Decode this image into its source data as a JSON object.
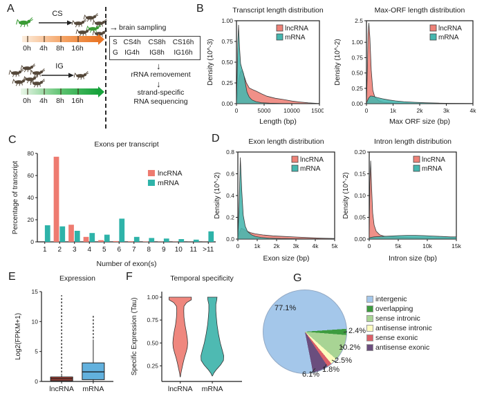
{
  "panel_labels": {
    "a": "A",
    "b": "B",
    "c": "C",
    "d": "D",
    "e": "E",
    "f": "F",
    "g": "G"
  },
  "colors": {
    "lncRNA_fill": "#ee8177",
    "mRNA_fill": "#45b6ae",
    "bug_dark": "#55483a",
    "bug_green": "#3a9b35",
    "orange_arrow": "#e97626",
    "green_arrow": "#17a33c"
  },
  "icons": {
    "right_arrow": "→",
    "down_arrow": "↓"
  },
  "panelA": {
    "cs": "CS",
    "ig": "IG",
    "timeline": [
      "0h",
      "4h",
      "8h",
      "16h"
    ],
    "brain_sampling": "brain sampling",
    "sample_box": {
      "row1": [
        "S",
        "CS4h",
        "CS8h",
        "CS16h"
      ],
      "row2": [
        "G",
        "IG4h",
        "IG8h",
        "IG16h"
      ]
    },
    "rrna": "rRNA removement",
    "strand1": "strand-specific",
    "strand2": "RNA sequencing"
  },
  "chart_data": [
    {
      "name": "transcript-length",
      "type": "area",
      "title": "Transcript length distribution",
      "xlabel": "Length (bp)",
      "ylabel": "Density (10^-3)",
      "xmax": 15000,
      "ymax": 1.0,
      "xticks": [
        0,
        5000,
        10000,
        15000
      ],
      "xtick_labels": [
        "0",
        "5000",
        "10000",
        "15000"
      ],
      "yticks": [
        0,
        0.25,
        0.5,
        0.75,
        1.0
      ],
      "ytick_labels": [
        "0.00",
        "0.25",
        "0.50",
        "0.75",
        "1.00"
      ],
      "series": [
        {
          "name": "lncRNA",
          "color": "#ee8177",
          "points": [
            [
              0,
              0
            ],
            [
              150,
              0.1
            ],
            [
              400,
              0.28
            ],
            [
              700,
              0.38
            ],
            [
              1000,
              0.4
            ],
            [
              1400,
              0.33
            ],
            [
              1800,
              0.25
            ],
            [
              2300,
              0.19
            ],
            [
              2900,
              0.17
            ],
            [
              3600,
              0.15
            ],
            [
              4500,
              0.12
            ],
            [
              5500,
              0.09
            ],
            [
              7000,
              0.065
            ],
            [
              8500,
              0.05
            ],
            [
              10000,
              0.032
            ],
            [
              11500,
              0.02
            ],
            [
              13000,
              0.01
            ],
            [
              14500,
              0.004
            ],
            [
              15000,
              0.003
            ]
          ]
        },
        {
          "name": "mRNA",
          "color": "#45b6ae",
          "points": [
            [
              0,
              0
            ],
            [
              120,
              0.35
            ],
            [
              250,
              0.75
            ],
            [
              380,
              0.95
            ],
            [
              550,
              0.68
            ],
            [
              750,
              0.48
            ],
            [
              1000,
              0.42
            ],
            [
              1300,
              0.36
            ],
            [
              1600,
              0.25
            ],
            [
              1900,
              0.14
            ],
            [
              2300,
              0.08
            ],
            [
              2800,
              0.045
            ],
            [
              3500,
              0.025
            ],
            [
              4500,
              0.012
            ],
            [
              6000,
              0.006
            ],
            [
              8000,
              0.003
            ],
            [
              15000,
              0.001
            ]
          ]
        }
      ]
    },
    {
      "name": "max-orf-length",
      "type": "area",
      "title": "Max-ORF length distribution",
      "xlabel": "Max ORF size (bp)",
      "ylabel": "Density (10^-2)",
      "xmax": 4000,
      "ymax": 2.5,
      "ybreak": {
        "lin": 1.0,
        "max": 2.5,
        "frac": 0.74
      },
      "xticks": [
        0,
        1000,
        2000,
        3000,
        4000
      ],
      "xtick_labels": [
        "0",
        "1k",
        "2k",
        "3k",
        "4k"
      ],
      "yticks": [
        0,
        0.25,
        0.5,
        0.75,
        1.0,
        2.5
      ],
      "ytick_labels": [
        "0.00",
        "0.25",
        "0.50",
        "0.75",
        "1.00",
        "2.5"
      ],
      "series": [
        {
          "name": "lncRNA",
          "color": "#ee8177",
          "points": [
            [
              0,
              0.02
            ],
            [
              30,
              0.5
            ],
            [
              60,
              1.6
            ],
            [
              90,
              2.35
            ],
            [
              130,
              1.3
            ],
            [
              180,
              0.55
            ],
            [
              240,
              0.22
            ],
            [
              320,
              0.1
            ],
            [
              450,
              0.05
            ],
            [
              650,
              0.02
            ],
            [
              1000,
              0.01
            ],
            [
              2000,
              0.004
            ],
            [
              4000,
              0.001
            ]
          ]
        },
        {
          "name": "mRNA",
          "color": "#45b6ae",
          "points": [
            [
              0,
              0.01
            ],
            [
              80,
              0.09
            ],
            [
              150,
              0.125
            ],
            [
              250,
              0.12
            ],
            [
              400,
              0.1
            ],
            [
              600,
              0.08
            ],
            [
              850,
              0.06
            ],
            [
              1100,
              0.045
            ],
            [
              1400,
              0.033
            ],
            [
              1800,
              0.022
            ],
            [
              2200,
              0.015
            ],
            [
              2700,
              0.009
            ],
            [
              3200,
              0.006
            ],
            [
              4000,
              0.003
            ]
          ]
        }
      ]
    },
    {
      "name": "exons-per-transcript",
      "type": "bar",
      "title": "Exons per transcript",
      "xlabel": "Number of exon(s)",
      "ylabel": "Percentage of transcript",
      "categories": [
        "1",
        "2",
        "3",
        "4",
        "5",
        "6",
        "7",
        "8",
        "9",
        "10",
        "11",
        ">11"
      ],
      "ymax": 80,
      "yticks": [
        0,
        20,
        40,
        60,
        80
      ],
      "ytick_labels": [
        "0",
        "20",
        "40",
        "60",
        "80"
      ],
      "series": [
        {
          "name": "lncRNA",
          "color": "#ee7b70",
          "values": [
            0,
            77,
            15.5,
            4.5,
            1.5,
            0.7,
            0.5,
            0.3,
            0.2,
            0.2,
            0.1,
            0.1
          ]
        },
        {
          "name": "mRNA",
          "color": "#2eb3a9",
          "values": [
            15,
            14,
            10,
            8,
            6.5,
            21,
            4.5,
            3.5,
            3,
            2.5,
            2,
            9.5
          ]
        }
      ]
    },
    {
      "name": "exon-length",
      "type": "area",
      "title": "Exon length distribution",
      "xlabel": "Exon size (bp)",
      "ylabel": "Density (10^-2)",
      "xmax": 5000,
      "ymax": 0.8,
      "xticks": [
        0,
        1000,
        2000,
        3000,
        4000,
        5000
      ],
      "xtick_labels": [
        "0",
        "1k",
        "2k",
        "3k",
        "4k",
        "5k"
      ],
      "yticks": [
        0,
        0.2,
        0.4,
        0.6,
        0.8
      ],
      "ytick_labels": [
        "0.0",
        "0.2",
        "0.4",
        "0.6",
        "0.8"
      ],
      "series": [
        {
          "name": "lncRNA",
          "color": "#ee8177",
          "points": [
            [
              0,
              0.01
            ],
            [
              80,
              0.06
            ],
            [
              180,
              0.1
            ],
            [
              300,
              0.09
            ],
            [
              450,
              0.075
            ],
            [
              650,
              0.06
            ],
            [
              900,
              0.048
            ],
            [
              1300,
              0.038
            ],
            [
              1800,
              0.03
            ],
            [
              2400,
              0.024
            ],
            [
              3000,
              0.019
            ],
            [
              3600,
              0.014
            ],
            [
              4300,
              0.009
            ],
            [
              5000,
              0.005
            ]
          ]
        },
        {
          "name": "mRNA",
          "color": "#45b6ae",
          "points": [
            [
              0,
              0.01
            ],
            [
              60,
              0.3
            ],
            [
              130,
              0.75
            ],
            [
              200,
              0.45
            ],
            [
              280,
              0.22
            ],
            [
              380,
              0.12
            ],
            [
              500,
              0.07
            ],
            [
              700,
              0.04
            ],
            [
              900,
              0.025
            ],
            [
              1200,
              0.015
            ],
            [
              1600,
              0.009
            ],
            [
              2200,
              0.005
            ],
            [
              3000,
              0.003
            ],
            [
              5000,
              0.001
            ]
          ]
        }
      ]
    },
    {
      "name": "intron-length",
      "type": "area",
      "title": "Intron length distribution",
      "xlabel": "Intron size (bp)",
      "ylabel": "Density (10^-2)",
      "xmax": 15000,
      "ymax": 0.2,
      "xticks": [
        0,
        5000,
        10000,
        15000
      ],
      "xtick_labels": [
        "0",
        "5k",
        "10k",
        "15k"
      ],
      "yticks": [
        0,
        0.05,
        0.1,
        0.15,
        0.2
      ],
      "ytick_labels": [
        "0.00",
        "0.05",
        "0.10",
        "0.15",
        "0.20"
      ],
      "series": [
        {
          "name": "lncRNA",
          "color": "#ee8177",
          "points": [
            [
              0,
              0.01
            ],
            [
              120,
              0.13
            ],
            [
              250,
              0.18
            ],
            [
              400,
              0.12
            ],
            [
              600,
              0.06
            ],
            [
              850,
              0.032
            ],
            [
              1200,
              0.018
            ],
            [
              1800,
              0.01
            ],
            [
              2500,
              0.007
            ],
            [
              4000,
              0.005
            ],
            [
              6000,
              0.004
            ],
            [
              9000,
              0.003
            ],
            [
              12000,
              0.002
            ],
            [
              15000,
              0.002
            ]
          ]
        },
        {
          "name": "mRNA",
          "color": "#45b6ae",
          "points": [
            [
              0,
              0.003
            ],
            [
              800,
              0.005
            ],
            [
              2000,
              0.006
            ],
            [
              3500,
              0.007
            ],
            [
              5000,
              0.008
            ],
            [
              6500,
              0.0085
            ],
            [
              8000,
              0.0085
            ],
            [
              9500,
              0.008
            ],
            [
              11000,
              0.007
            ],
            [
              12500,
              0.006
            ],
            [
              14000,
              0.005
            ],
            [
              15000,
              0.005
            ]
          ]
        }
      ]
    },
    {
      "name": "expression",
      "type": "box",
      "title": "Expression",
      "ylabel": "Log2(FPKM+1)",
      "categories": [
        "lncRNA",
        "mRNA"
      ],
      "ymax": 15,
      "yticks": [
        0,
        5,
        10,
        15
      ],
      "ytick_labels": [
        "0",
        "5",
        "10",
        "15"
      ],
      "centers": [
        0.28,
        0.72
      ],
      "boxes": [
        {
          "q1": 0.12,
          "med": 0.45,
          "q3": 0.75,
          "lo": 0.02,
          "hi": 1.3,
          "out_lo": 1.5,
          "out_hi": 14.4,
          "color": "#b04a40"
        },
        {
          "q1": 0.3,
          "med": 1.6,
          "q3": 3.1,
          "lo": 0.02,
          "hi": 7.0,
          "out_lo": 7.2,
          "out_hi": 11.0,
          "color": "#62b1de"
        }
      ]
    },
    {
      "name": "temporal-specificity",
      "type": "violin",
      "title": "Temporal specificity",
      "ylabel": "Specific Expression (Tau)",
      "categories": [
        "lncRNA",
        "mRNA"
      ],
      "ymin": 0.08,
      "ymax": 1.06,
      "yticks": [
        0.25,
        0.5,
        0.75,
        1.0
      ],
      "ytick_labels": [
        "0.25",
        "0.50",
        "0.75",
        "1.00"
      ],
      "centers": [
        0.23,
        0.63
      ],
      "max_halfwidth": 17,
      "series": [
        {
          "name": "lncRNA",
          "color": "#ee8177",
          "profile": [
            [
              1.0,
              0.95
            ],
            [
              0.97,
              0.95
            ],
            [
              0.94,
              0.55
            ],
            [
              0.9,
              0.32
            ],
            [
              0.85,
              0.3
            ],
            [
              0.78,
              0.32
            ],
            [
              0.7,
              0.4
            ],
            [
              0.62,
              0.52
            ],
            [
              0.55,
              0.6
            ],
            [
              0.5,
              0.63
            ],
            [
              0.45,
              0.6
            ],
            [
              0.4,
              0.5
            ],
            [
              0.34,
              0.36
            ],
            [
              0.28,
              0.24
            ],
            [
              0.22,
              0.14
            ],
            [
              0.17,
              0.06
            ],
            [
              0.13,
              0.01
            ]
          ]
        },
        {
          "name": "mRNA",
          "color": "#45b6ae",
          "profile": [
            [
              1.0,
              0.4
            ],
            [
              0.97,
              0.38
            ],
            [
              0.92,
              0.3
            ],
            [
              0.85,
              0.3
            ],
            [
              0.78,
              0.34
            ],
            [
              0.7,
              0.4
            ],
            [
              0.6,
              0.52
            ],
            [
              0.5,
              0.68
            ],
            [
              0.42,
              0.85
            ],
            [
              0.36,
              0.97
            ],
            [
              0.31,
              0.95
            ],
            [
              0.26,
              0.7
            ],
            [
              0.21,
              0.35
            ],
            [
              0.17,
              0.12
            ],
            [
              0.14,
              0.02
            ]
          ]
        }
      ]
    },
    {
      "name": "lncRNA-classification",
      "type": "pie",
      "pct_labels": [
        "77.1%",
        "2.4%",
        "10.2%",
        "2.5%",
        "1.8%",
        "6.1%"
      ],
      "slices": [
        {
          "label": "intergenic",
          "value": 77.1,
          "color": "#a4c7ea"
        },
        {
          "label": "overlapping",
          "value": 2.4,
          "color": "#3d9b3f"
        },
        {
          "label": "sense intronic",
          "value": 10.2,
          "color": "#a8d494"
        },
        {
          "label": "antisense intronic",
          "value": 2.5,
          "color": "#fdfcbf"
        },
        {
          "label": "sense exonic",
          "value": 1.8,
          "color": "#dc5f68"
        },
        {
          "label": "antisense exonic",
          "value": 6.1,
          "color": "#6b4e7e"
        }
      ],
      "draw_order": [
        1,
        2,
        3,
        4,
        5,
        0
      ],
      "start_angle_deg": 86
    }
  ]
}
